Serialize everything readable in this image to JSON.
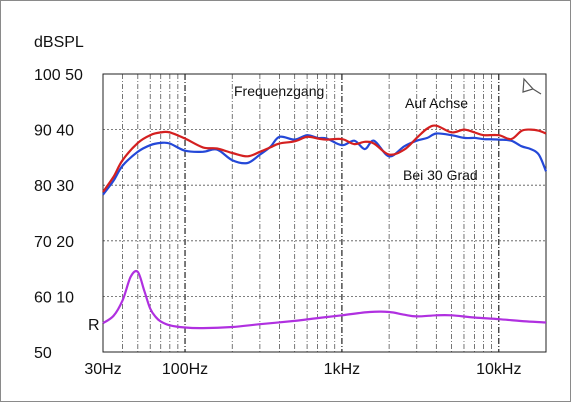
{
  "chart_data": {
    "type": "line",
    "title": "Frequenzgang",
    "ylabel": "dBSPL",
    "x_scale": "log",
    "xlim": [
      30,
      20000
    ],
    "ylim_spl": [
      50,
      100
    ],
    "ylim_impedance_ohm": [
      0,
      50
    ],
    "grid": true,
    "x_ticks": [
      {
        "value": 30,
        "label": "30Hz"
      },
      {
        "value": 100,
        "label": "100Hz"
      },
      {
        "value": 1000,
        "label": "1kHz"
      },
      {
        "value": 10000,
        "label": "10kHz"
      }
    ],
    "y_ticks": [
      {
        "value": 100,
        "label": "100 50"
      },
      {
        "value": 90,
        "label": "90 40"
      },
      {
        "value": 80,
        "label": "80 30"
      },
      {
        "value": 70,
        "label": "70 20"
      },
      {
        "value": 60,
        "label": "60 10"
      },
      {
        "value": 55,
        "label": "R"
      },
      {
        "value": 50,
        "label": "50"
      }
    ],
    "series": [
      {
        "name": "Auf Achse",
        "color": "#d42020",
        "axis": "spl",
        "x": [
          30,
          35,
          40,
          50,
          60,
          70,
          80,
          100,
          130,
          160,
          200,
          250,
          300,
          350,
          400,
          500,
          600,
          700,
          800,
          1000,
          1200,
          1400,
          1600,
          2000,
          2500,
          3000,
          3500,
          4000,
          5000,
          6000,
          7000,
          8000,
          10000,
          12000,
          14000,
          16000,
          18000,
          20000
        ],
        "y": [
          78.8,
          81.5,
          84.5,
          87.6,
          89.0,
          89.5,
          89.5,
          88.4,
          86.8,
          86.6,
          85.8,
          85.2,
          86.0,
          86.8,
          87.5,
          87.9,
          88.7,
          88.4,
          88.2,
          88.3,
          87.4,
          87.8,
          87.5,
          85.5,
          86.4,
          88.5,
          90.2,
          90.7,
          89.5,
          90.0,
          89.5,
          89.0,
          89.0,
          88.3,
          89.8,
          90.0,
          89.8,
          89.3
        ]
      },
      {
        "name": "Bei 30 Grad",
        "color": "#2448d8",
        "axis": "spl",
        "x": [
          30,
          35,
          40,
          50,
          60,
          70,
          80,
          100,
          130,
          160,
          200,
          250,
          300,
          350,
          400,
          500,
          600,
          700,
          800,
          1000,
          1200,
          1400,
          1600,
          2000,
          2500,
          3000,
          3500,
          4000,
          5000,
          6000,
          7000,
          8000,
          10000,
          12000,
          14000,
          16000,
          18000,
          20000
        ],
        "y": [
          78.3,
          80.8,
          83.5,
          86.0,
          87.2,
          87.6,
          87.5,
          86.2,
          86.0,
          86.4,
          84.5,
          84.0,
          85.5,
          86.9,
          88.7,
          88.2,
          89.0,
          88.5,
          88.4,
          87.2,
          88.0,
          86.5,
          88.0,
          85.2,
          87.0,
          88.0,
          88.5,
          89.3,
          89.0,
          88.5,
          88.5,
          88.3,
          88.2,
          88.0,
          87.0,
          86.5,
          85.5,
          82.5
        ]
      },
      {
        "color": "#b030e0",
        "axis": "impedance",
        "x": [
          30,
          35,
          40,
          45,
          50,
          55,
          60,
          65,
          70,
          80,
          100,
          130,
          200,
          300,
          500,
          700,
          1000,
          1500,
          2000,
          2500,
          3000,
          4000,
          5000,
          7000,
          10000,
          15000,
          20000
        ],
        "y": [
          5.2,
          6.5,
          9.3,
          13.5,
          14.4,
          11.0,
          7.8,
          6.3,
          5.5,
          4.8,
          4.4,
          4.3,
          4.5,
          5.0,
          5.6,
          6.1,
          6.6,
          7.2,
          7.2,
          6.7,
          6.4,
          6.6,
          6.6,
          6.2,
          5.9,
          5.5,
          5.3
        ]
      }
    ]
  }
}
